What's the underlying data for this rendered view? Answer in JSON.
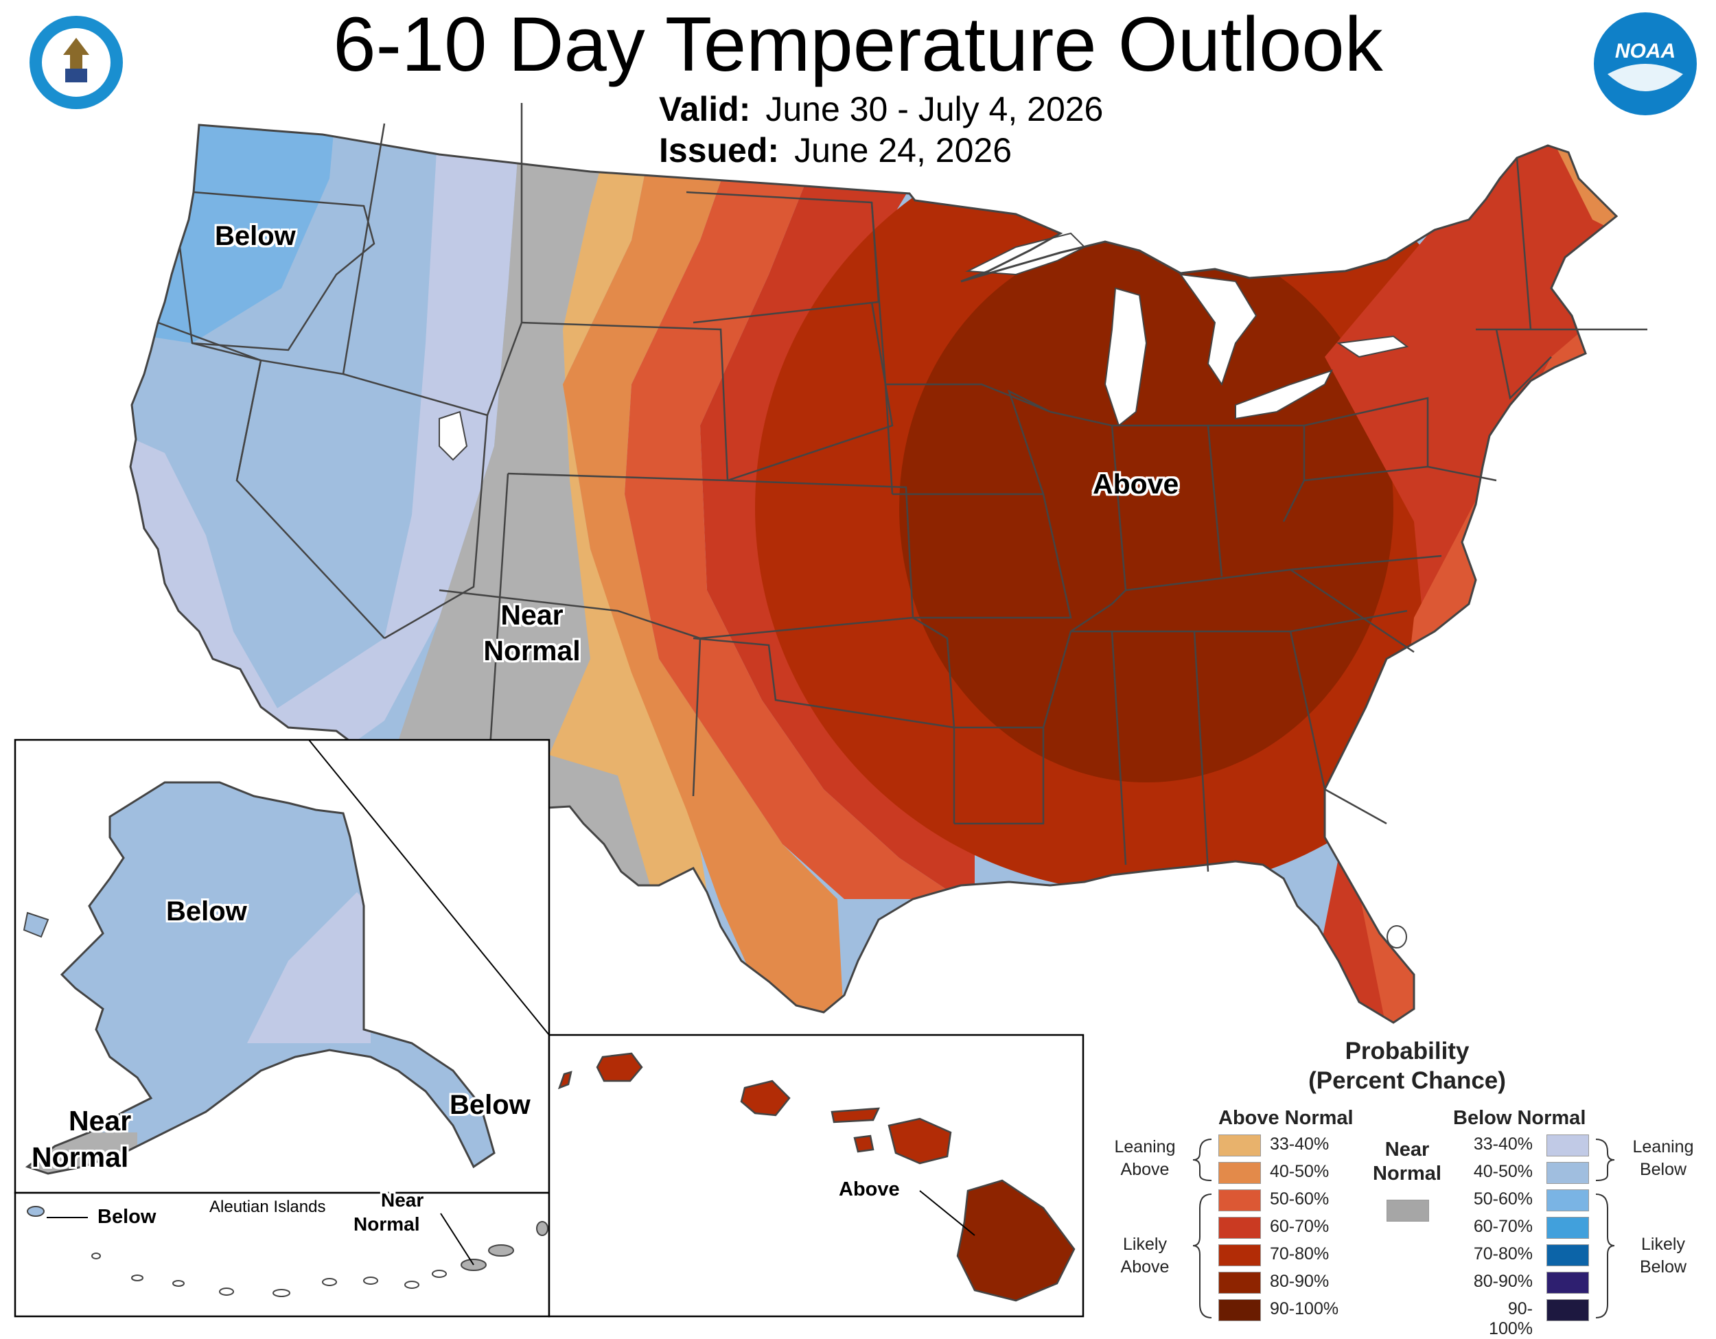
{
  "header": {
    "title": "6-10 Day Temperature Outlook",
    "valid_label": "Valid:",
    "valid_range": "June 30 - July 4, 2026",
    "issued_label": "Issued:",
    "issued_date": "June 24, 2026"
  },
  "logos": {
    "commerce_seal": "department-of-commerce-seal",
    "noaa_text": "NOAA"
  },
  "map_labels": {
    "conus_below": "Below",
    "conus_near_normal_1": "Near",
    "conus_near_normal_2": "Normal",
    "conus_above": "Above",
    "alaska_below": "Below",
    "alaska_below_panhandle": "Below",
    "alaska_near_normal_1": "Near",
    "alaska_near_normal_2": "Normal",
    "aleutian_below": "Below",
    "aleutian_title": "Aleutian Islands",
    "aleutian_near_1": "Near",
    "aleutian_near_2": "Normal",
    "hawaii_above": "Above"
  },
  "legend": {
    "title_1": "Probability",
    "title_2": "(Percent Chance)",
    "above_header": "Above Normal",
    "below_header": "Below Normal",
    "near_header_1": "Near",
    "near_header_2": "Normal",
    "leaning_above_1": "Leaning",
    "leaning_above_2": "Above",
    "likely_above_1": "Likely",
    "likely_above_2": "Above",
    "leaning_below_1": "Leaning",
    "leaning_below_2": "Below",
    "likely_below_1": "Likely",
    "likely_below_2": "Below",
    "near_color": "#a6a6a6",
    "above": [
      {
        "range": "33-40%",
        "color": "#e8b26c"
      },
      {
        "range": "40-50%",
        "color": "#e38a4a"
      },
      {
        "range": "50-60%",
        "color": "#dc5834"
      },
      {
        "range": "60-70%",
        "color": "#ca3a22"
      },
      {
        "range": "70-80%",
        "color": "#b22c06"
      },
      {
        "range": "80-90%",
        "color": "#8e2400"
      },
      {
        "range": "90-100%",
        "color": "#6a1c00"
      }
    ],
    "below": [
      {
        "range": "33-40%",
        "color": "#c1cae6"
      },
      {
        "range": "40-50%",
        "color": "#a0bedf"
      },
      {
        "range": "50-60%",
        "color": "#7ab4e4"
      },
      {
        "range": "60-70%",
        "color": "#41a0dc"
      },
      {
        "range": "70-80%",
        "color": "#0c64a8"
      },
      {
        "range": "80-90%",
        "color": "#2e1f70"
      },
      {
        "range": "90-100%",
        "color": "#1d1840"
      }
    ]
  }
}
